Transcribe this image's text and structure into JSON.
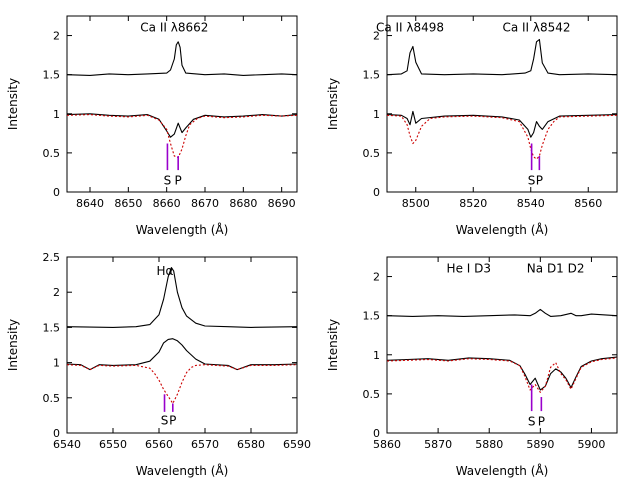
{
  "chart_data": [
    {
      "type": "line",
      "panel": "top-left",
      "xlabel": "Wavelength (Å)",
      "ylabel": "Intensity",
      "xlim": [
        8634,
        8694
      ],
      "ylim": [
        0,
        2.25
      ],
      "xticks": [
        8640,
        8650,
        8660,
        8670,
        8680,
        8690
      ],
      "yticks": [
        0,
        0.5,
        1,
        1.5,
        2
      ],
      "annotations": [
        {
          "text": "Ca II λ8662",
          "x": 8662,
          "y": 2.1
        }
      ],
      "sp_labels": [
        {
          "text": "S",
          "x": 8660.2,
          "y": 0.15
        },
        {
          "text": "P",
          "x": 8663.0,
          "y": 0.15
        }
      ],
      "markers": [
        {
          "name": "S",
          "x": 8660.2,
          "y0": 0.28,
          "y1": 0.62
        },
        {
          "name": "P",
          "x": 8663.0,
          "y0": 0.28,
          "y1": 0.46
        }
      ],
      "series": [
        {
          "role": "observed-upper",
          "color": "#000000",
          "dashed": false,
          "x": [
            8634,
            8640,
            8645,
            8650,
            8655,
            8660,
            8661,
            8662,
            8662.5,
            8663,
            8663.5,
            8664,
            8665,
            8670,
            8675,
            8680,
            8685,
            8690,
            8694
          ],
          "y": [
            1.5,
            1.49,
            1.51,
            1.5,
            1.51,
            1.52,
            1.56,
            1.7,
            1.88,
            1.92,
            1.85,
            1.62,
            1.52,
            1.5,
            1.51,
            1.49,
            1.5,
            1.51,
            1.5
          ]
        },
        {
          "role": "observed-lower",
          "color": "#000000",
          "dashed": false,
          "x": [
            8634,
            8640,
            8645,
            8650,
            8655,
            8658,
            8660,
            8661,
            8662,
            8663,
            8664,
            8665,
            8667,
            8670,
            8675,
            8680,
            8685,
            8690,
            8694
          ],
          "y": [
            0.99,
            1.0,
            0.98,
            0.97,
            0.99,
            0.93,
            0.78,
            0.7,
            0.74,
            0.88,
            0.76,
            0.82,
            0.93,
            0.98,
            0.96,
            0.97,
            0.99,
            0.97,
            0.99
          ]
        },
        {
          "role": "model",
          "color": "#cc0000",
          "dashed": true,
          "x": [
            8634,
            8640,
            8645,
            8650,
            8655,
            8658,
            8660,
            8661,
            8662,
            8663,
            8664,
            8665,
            8666,
            8668,
            8670,
            8675,
            8680,
            8685,
            8690,
            8694
          ],
          "y": [
            0.98,
            0.99,
            0.97,
            0.96,
            0.98,
            0.92,
            0.8,
            0.62,
            0.46,
            0.44,
            0.55,
            0.72,
            0.86,
            0.94,
            0.97,
            0.95,
            0.96,
            0.98,
            0.97,
            0.98
          ]
        }
      ]
    },
    {
      "type": "line",
      "panel": "top-right",
      "xlabel": "Wavelength (Å)",
      "ylabel": "Intensity",
      "xlim": [
        8490,
        8570
      ],
      "ylim": [
        0,
        2.25
      ],
      "xticks": [
        8500,
        8520,
        8540,
        8560
      ],
      "yticks": [
        0,
        0.5,
        1,
        1.5,
        2
      ],
      "annotations": [
        {
          "text": "Ca II λ8498",
          "x": 8498,
          "y": 2.1
        },
        {
          "text": "Ca II λ8542",
          "x": 8542,
          "y": 2.1
        }
      ],
      "sp_labels": [
        {
          "text": "S",
          "x": 8540.3,
          "y": 0.15
        },
        {
          "text": "P",
          "x": 8543.0,
          "y": 0.15
        }
      ],
      "markers": [
        {
          "name": "S",
          "x": 8540.3,
          "y0": 0.28,
          "y1": 0.62
        },
        {
          "name": "P",
          "x": 8543.0,
          "y0": 0.28,
          "y1": 0.46
        }
      ],
      "series": [
        {
          "role": "observed-upper",
          "color": "#000000",
          "dashed": false,
          "x": [
            8490,
            8495,
            8497,
            8498,
            8499,
            8500,
            8502,
            8510,
            8520,
            8530,
            8538,
            8540,
            8541,
            8542,
            8543,
            8544,
            8546,
            8550,
            8560,
            8570
          ],
          "y": [
            1.5,
            1.51,
            1.55,
            1.78,
            1.86,
            1.66,
            1.51,
            1.5,
            1.51,
            1.5,
            1.52,
            1.55,
            1.7,
            1.92,
            1.95,
            1.65,
            1.52,
            1.5,
            1.51,
            1.5
          ]
        },
        {
          "role": "observed-lower",
          "color": "#000000",
          "dashed": false,
          "x": [
            8490,
            8495,
            8497,
            8498,
            8499,
            8500,
            8502,
            8510,
            8520,
            8530,
            8536,
            8539,
            8540,
            8541,
            8542,
            8543,
            8544,
            8546,
            8550,
            8560,
            8570
          ],
          "y": [
            0.99,
            0.98,
            0.94,
            0.86,
            1.03,
            0.88,
            0.94,
            0.97,
            0.98,
            0.96,
            0.92,
            0.8,
            0.7,
            0.76,
            0.9,
            0.84,
            0.8,
            0.9,
            0.97,
            0.98,
            0.99
          ]
        },
        {
          "role": "model",
          "color": "#cc0000",
          "dashed": true,
          "x": [
            8490,
            8495,
            8497,
            8498,
            8499,
            8500,
            8502,
            8505,
            8510,
            8520,
            8530,
            8536,
            8539,
            8540,
            8541,
            8542,
            8543,
            8544,
            8546,
            8548,
            8550,
            8560,
            8570
          ],
          "y": [
            0.98,
            0.97,
            0.86,
            0.72,
            0.62,
            0.66,
            0.84,
            0.94,
            0.96,
            0.97,
            0.95,
            0.9,
            0.7,
            0.55,
            0.45,
            0.42,
            0.46,
            0.6,
            0.8,
            0.9,
            0.96,
            0.97,
            0.98
          ]
        }
      ]
    },
    {
      "type": "line",
      "panel": "bottom-left",
      "xlabel": "Wavelength (Å)",
      "ylabel": "Intensity",
      "xlim": [
        6540,
        6590
      ],
      "ylim": [
        0,
        2.5
      ],
      "xticks": [
        6540,
        6550,
        6560,
        6570,
        6580,
        6590
      ],
      "yticks": [
        0,
        0.5,
        1,
        1.5,
        2,
        2.5
      ],
      "annotations": [
        {
          "text": "Hα",
          "x": 6561.3,
          "y": 2.3
        }
      ],
      "sp_labels": [
        {
          "text": "S",
          "x": 6561.2,
          "y": 0.18
        },
        {
          "text": "P",
          "x": 6563.0,
          "y": 0.18
        }
      ],
      "markers": [
        {
          "name": "S",
          "x": 6561.2,
          "y0": 0.3,
          "y1": 0.55
        },
        {
          "name": "P",
          "x": 6563.0,
          "y0": 0.3,
          "y1": 0.42
        }
      ],
      "series": [
        {
          "role": "observed-upper",
          "color": "#000000",
          "dashed": false,
          "x": [
            6540,
            6550,
            6555,
            6558,
            6560,
            6561,
            6562,
            6562.7,
            6563.2,
            6564,
            6565,
            6566,
            6568,
            6570,
            6575,
            6580,
            6590
          ],
          "y": [
            1.51,
            1.5,
            1.51,
            1.54,
            1.68,
            1.9,
            2.22,
            2.35,
            2.3,
            2.0,
            1.78,
            1.66,
            1.56,
            1.52,
            1.51,
            1.5,
            1.51
          ]
        },
        {
          "role": "observed-lower",
          "color": "#000000",
          "dashed": false,
          "x": [
            6540,
            6543,
            6545,
            6547,
            6550,
            6555,
            6558,
            6560,
            6561,
            6562,
            6563,
            6564,
            6565,
            6566,
            6568,
            6570,
            6575,
            6577,
            6580,
            6585,
            6590
          ],
          "y": [
            0.98,
            0.97,
            0.9,
            0.97,
            0.96,
            0.97,
            1.02,
            1.15,
            1.28,
            1.33,
            1.34,
            1.31,
            1.25,
            1.17,
            1.05,
            0.98,
            0.96,
            0.9,
            0.97,
            0.97,
            0.98
          ]
        },
        {
          "role": "model",
          "color": "#cc0000",
          "dashed": true,
          "x": [
            6540,
            6543,
            6545,
            6547,
            6550,
            6555,
            6558,
            6559,
            6560,
            6561,
            6562,
            6563,
            6564,
            6565,
            6566,
            6567,
            6568,
            6570,
            6575,
            6577,
            6580,
            6585,
            6590
          ],
          "y": [
            0.97,
            0.96,
            0.9,
            0.96,
            0.95,
            0.96,
            0.92,
            0.85,
            0.75,
            0.62,
            0.52,
            0.42,
            0.55,
            0.72,
            0.86,
            0.93,
            0.96,
            0.97,
            0.95,
            0.9,
            0.96,
            0.96,
            0.97
          ]
        }
      ]
    },
    {
      "type": "line",
      "panel": "bottom-right",
      "xlabel": "Wavelength (Å)",
      "ylabel": "Intensity",
      "xlim": [
        5860,
        5905
      ],
      "ylim": [
        0,
        2.25
      ],
      "xticks": [
        5860,
        5870,
        5880,
        5890,
        5900
      ],
      "yticks": [
        0,
        0.5,
        1,
        1.5,
        2
      ],
      "annotations": [
        {
          "text": "He I D3",
          "x": 5876,
          "y": 2.1
        },
        {
          "text": "Na D1 D2",
          "x": 5893,
          "y": 2.1
        }
      ],
      "sp_labels": [
        {
          "text": "S",
          "x": 5888.3,
          "y": 0.15
        },
        {
          "text": "P",
          "x": 5890.2,
          "y": 0.15
        }
      ],
      "markers": [
        {
          "name": "S",
          "x": 5888.3,
          "y0": 0.28,
          "y1": 0.62
        },
        {
          "name": "P",
          "x": 5890.2,
          "y0": 0.28,
          "y1": 0.46
        }
      ],
      "series": [
        {
          "role": "observed-upper",
          "color": "#000000",
          "dashed": false,
          "x": [
            5860,
            5865,
            5870,
            5875,
            5880,
            5885,
            5888,
            5889,
            5890,
            5891,
            5892,
            5894,
            5896,
            5897,
            5898,
            5900,
            5905
          ],
          "y": [
            1.5,
            1.49,
            1.5,
            1.49,
            1.5,
            1.51,
            1.5,
            1.53,
            1.58,
            1.53,
            1.49,
            1.5,
            1.53,
            1.5,
            1.5,
            1.52,
            1.5
          ]
        },
        {
          "role": "observed-lower",
          "color": "#000000",
          "dashed": false,
          "x": [
            5860,
            5864,
            5868,
            5872,
            5876,
            5880,
            5884,
            5886,
            5887,
            5888,
            5889,
            5890,
            5891,
            5892,
            5893,
            5894,
            5895,
            5896,
            5897,
            5898,
            5900,
            5902,
            5905
          ],
          "y": [
            0.93,
            0.94,
            0.95,
            0.93,
            0.96,
            0.95,
            0.93,
            0.86,
            0.75,
            0.62,
            0.7,
            0.55,
            0.6,
            0.76,
            0.82,
            0.78,
            0.7,
            0.58,
            0.72,
            0.85,
            0.92,
            0.95,
            0.97
          ]
        },
        {
          "role": "model",
          "color": "#cc0000",
          "dashed": true,
          "x": [
            5860,
            5864,
            5868,
            5872,
            5876,
            5880,
            5884,
            5886,
            5887,
            5888,
            5889,
            5890,
            5891,
            5892,
            5893,
            5894,
            5895,
            5896,
            5897,
            5898,
            5900,
            5902,
            5905
          ],
          "y": [
            0.92,
            0.93,
            0.94,
            0.92,
            0.95,
            0.94,
            0.92,
            0.86,
            0.72,
            0.55,
            0.62,
            0.52,
            0.6,
            0.84,
            0.9,
            0.76,
            0.68,
            0.56,
            0.7,
            0.84,
            0.91,
            0.94,
            0.96
          ]
        }
      ]
    }
  ]
}
